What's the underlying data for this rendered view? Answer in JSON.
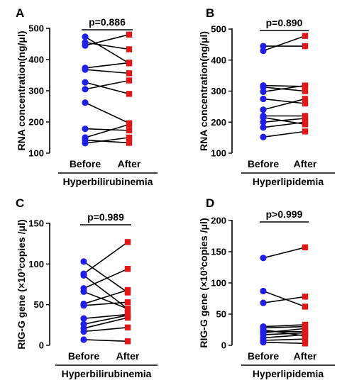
{
  "chart_data": [
    {
      "type": "scatter",
      "panel": "A",
      "ylabel": "RNA concentration(ng/μl)",
      "ylim": [
        100,
        500
      ],
      "yticks": [
        100,
        200,
        300,
        400,
        500
      ],
      "categories": [
        "Before",
        "After"
      ],
      "group_label": "Hyperbilirubinemia",
      "p_value": "p=0.886",
      "pairs": [
        [
          473,
          388
        ],
        [
          455,
          433
        ],
        [
          445,
          480
        ],
        [
          373,
          390
        ],
        [
          368,
          356
        ],
        [
          327,
          290
        ],
        [
          305,
          333
        ],
        [
          262,
          196
        ],
        [
          178,
          173
        ],
        [
          150,
          192
        ],
        [
          142,
          133
        ],
        [
          132,
          150
        ]
      ]
    },
    {
      "type": "scatter",
      "panel": "B",
      "ylabel": "RNA concentration(ng/μl)",
      "ylim": [
        100,
        500
      ],
      "yticks": [
        100,
        200,
        300,
        400,
        500
      ],
      "categories": [
        "Before",
        "After"
      ],
      "group_label": "Hyperlipidemia",
      "p_value": "p=0.890",
      "pairs": [
        [
          445,
          445
        ],
        [
          430,
          478
        ],
        [
          318,
          315
        ],
        [
          313,
          300
        ],
        [
          298,
          318
        ],
        [
          275,
          260
        ],
        [
          240,
          275
        ],
        [
          220,
          220
        ],
        [
          215,
          193
        ],
        [
          200,
          212
        ],
        [
          183,
          200
        ],
        [
          152,
          170
        ]
      ]
    },
    {
      "type": "scatter",
      "panel": "C",
      "ylabel": "RIG-G gene (×10³copies /μl)",
      "ylim": [
        0,
        150
      ],
      "yticks": [
        0,
        50,
        100,
        150
      ],
      "categories": [
        "Before",
        "After"
      ],
      "group_label": "Hyperbilirubinemia",
      "p_value": "p=0.989",
      "pairs": [
        [
          103,
          65
        ],
        [
          88,
          127
        ],
        [
          86,
          45
        ],
        [
          70,
          94
        ],
        [
          66,
          45
        ],
        [
          51,
          68
        ],
        [
          49,
          53
        ],
        [
          33,
          38
        ],
        [
          26,
          37
        ],
        [
          21,
          34
        ],
        [
          17,
          22
        ],
        [
          7,
          5
        ]
      ]
    },
    {
      "type": "scatter",
      "panel": "D",
      "ylabel": "RIG-G gene (×10³copies /μl)",
      "ylim": [
        0,
        200
      ],
      "yticks": [
        0,
        50,
        100,
        150,
        200
      ],
      "categories": [
        "Before",
        "After"
      ],
      "group_label": "Hyperlipidemia",
      "p_value": "p>0.999",
      "pairs": [
        [
          140,
          157
        ],
        [
          87,
          62
        ],
        [
          68,
          78
        ],
        [
          30,
          33
        ],
        [
          28,
          30
        ],
        [
          25,
          15
        ],
        [
          22,
          22
        ],
        [
          20,
          27
        ],
        [
          17,
          20
        ],
        [
          12,
          17
        ],
        [
          8,
          10
        ],
        [
          5,
          3
        ]
      ]
    }
  ]
}
